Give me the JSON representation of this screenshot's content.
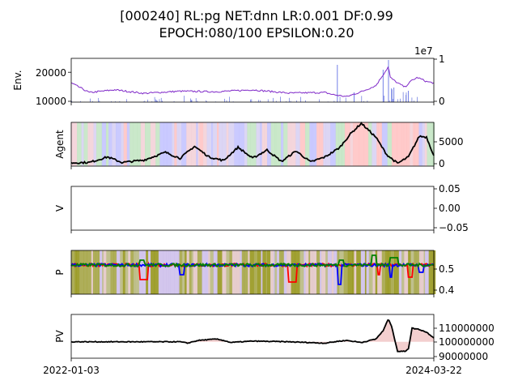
{
  "chart_data": {
    "type": "line",
    "title_line1": "[000240] RL:pg NET:dnn LR:0.001 DF:0.99",
    "title_line2": "EPOCH:080/100 EPSILON:0.20",
    "x_start_label": "2022-01-03",
    "x_end_label": "2024-03-22",
    "panels": [
      {
        "name": "env",
        "ylabel": "Env.",
        "left_ticks": [
          "20000",
          "10000"
        ],
        "left_tick_values": [
          20000,
          10000
        ],
        "ylim": [
          9000,
          25000
        ],
        "right_ticks": [
          "1",
          "0"
        ],
        "right_tick_values": [
          1,
          0
        ],
        "right_offset": "1e7",
        "right_ylim": [
          0,
          1
        ],
        "series_color": "#7f28c8",
        "price_keypoints": [
          [
            0,
            16000
          ],
          [
            0.05,
            12500
          ],
          [
            0.12,
            13500
          ],
          [
            0.2,
            12200
          ],
          [
            0.3,
            13000
          ],
          [
            0.4,
            12800
          ],
          [
            0.5,
            13500
          ],
          [
            0.6,
            12300
          ],
          [
            0.7,
            12500
          ],
          [
            0.72,
            11800
          ],
          [
            0.76,
            11000
          ],
          [
            0.8,
            12800
          ],
          [
            0.84,
            15000
          ],
          [
            0.86,
            19000
          ],
          [
            0.875,
            22000
          ],
          [
            0.88,
            18000
          ],
          [
            0.9,
            16000
          ],
          [
            0.92,
            14500
          ],
          [
            0.94,
            17000
          ],
          [
            0.955,
            18000
          ],
          [
            0.98,
            16500
          ],
          [
            1.0,
            16000
          ]
        ]
      },
      {
        "name": "agent",
        "ylabel": "Agent",
        "right_ticks": [
          "5000",
          "0"
        ],
        "right_tick_values": [
          5000,
          0
        ],
        "ylim": [
          -500,
          9000
        ],
        "series_color": "#000000",
        "agent_keypoints": [
          [
            0,
            200
          ],
          [
            0.05,
            300
          ],
          [
            0.1,
            1500
          ],
          [
            0.14,
            300
          ],
          [
            0.2,
            800
          ],
          [
            0.26,
            2500
          ],
          [
            0.3,
            1200
          ],
          [
            0.34,
            3800
          ],
          [
            0.38,
            1500
          ],
          [
            0.42,
            700
          ],
          [
            0.46,
            3600
          ],
          [
            0.5,
            1200
          ],
          [
            0.54,
            3000
          ],
          [
            0.58,
            500
          ],
          [
            0.62,
            2800
          ],
          [
            0.66,
            400
          ],
          [
            0.7,
            1500
          ],
          [
            0.74,
            3500
          ],
          [
            0.77,
            6500
          ],
          [
            0.8,
            8800
          ],
          [
            0.84,
            5800
          ],
          [
            0.87,
            2000
          ],
          [
            0.9,
            100
          ],
          [
            0.93,
            1500
          ],
          [
            0.96,
            6000
          ],
          [
            0.98,
            5800
          ],
          [
            1.0,
            1800
          ]
        ]
      },
      {
        "name": "value",
        "ylabel": "V",
        "right_ticks": [
          "0.05",
          "0.00",
          "−0.05"
        ],
        "right_tick_values": [
          0.05,
          0,
          -0.05
        ],
        "ylim": [
          -0.055,
          0.055
        ]
      },
      {
        "name": "policy",
        "ylabel": "P",
        "right_ticks": [
          "0.5",
          "0.4"
        ],
        "right_tick_values": [
          0.5,
          0.4
        ],
        "ylim": [
          0.39,
          0.57
        ],
        "series_colors": [
          "#ff0000",
          "#0000ff",
          "#008000"
        ],
        "baseline": 0.51
      },
      {
        "name": "pv",
        "ylabel": "PV",
        "right_ticks": [
          "110000000",
          "100000000",
          "90000000"
        ],
        "right_tick_values": [
          110000000,
          100000000,
          90000000
        ],
        "ylim": [
          88000000,
          120000000
        ],
        "series_color": "#000000",
        "pv_keypoints": [
          [
            0,
            100000000
          ],
          [
            0.3,
            100000000
          ],
          [
            0.32,
            99000000
          ],
          [
            0.35,
            101000000
          ],
          [
            0.4,
            102000000
          ],
          [
            0.42,
            101000000
          ],
          [
            0.44,
            99500000
          ],
          [
            0.5,
            100500000
          ],
          [
            0.6,
            100000000
          ],
          [
            0.7,
            99000000
          ],
          [
            0.74,
            100500000
          ],
          [
            0.76,
            101000000
          ],
          [
            0.8,
            99500000
          ],
          [
            0.84,
            102000000
          ],
          [
            0.86,
            108000000
          ],
          [
            0.875,
            117000000
          ],
          [
            0.885,
            110000000
          ],
          [
            0.9,
            93000000
          ],
          [
            0.92,
            93000000
          ],
          [
            0.93,
            95000000
          ],
          [
            0.94,
            110000000
          ],
          [
            0.96,
            109000000
          ],
          [
            0.98,
            107000000
          ],
          [
            1.0,
            103000000
          ]
        ]
      }
    ]
  }
}
